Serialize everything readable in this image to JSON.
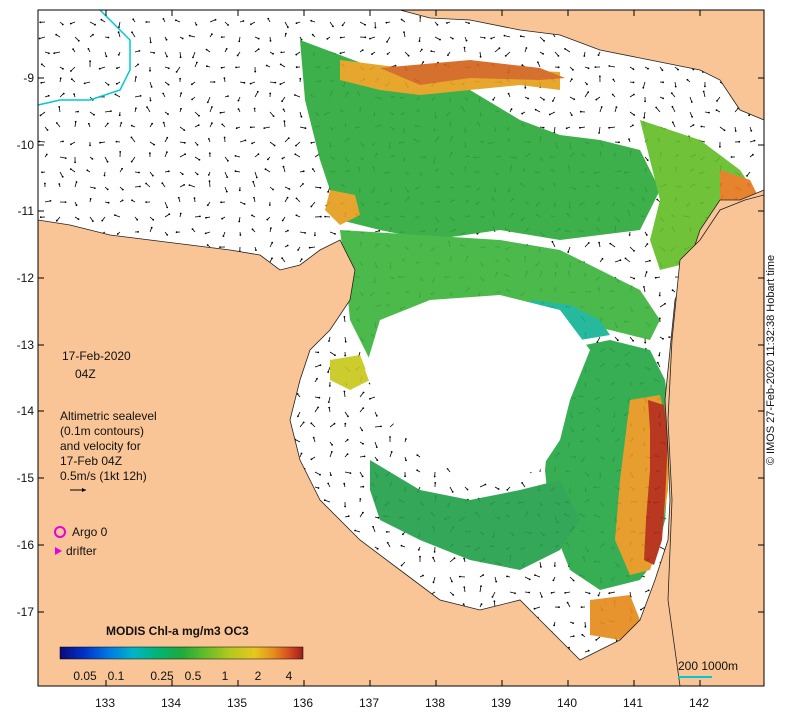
{
  "title_date": "17-Feb-2020",
  "title_time": "04Z",
  "legend": {
    "line1": "Altimetric sealevel",
    "line2": "(0.1m contours)",
    "line3": "and velocity for",
    "line4": "17-Feb 04Z",
    "line5": "0.5m/s (1kt 12h)",
    "argo": "Argo 0",
    "drifter": "drifter"
  },
  "colorbar": {
    "title": "MODIS Chl-a mg/m3 OC3",
    "ticks": [
      "0.05",
      "0.1",
      "0.25",
      "0.5",
      "1",
      "2",
      "4"
    ],
    "colors": [
      "#0a0a78",
      "#0032c8",
      "#0078e6",
      "#00b4c8",
      "#00b478",
      "#1eaa3c",
      "#64be28",
      "#b4c81e",
      "#e6c81e",
      "#e68c1e",
      "#d2461e",
      "#9b1e1e"
    ]
  },
  "scale": {
    "label": "200  1000m"
  },
  "credit": "© IMOS 27-Feb-2020 11:32:38 Hobart time",
  "axes": {
    "x_ticks": [
      "133",
      "134",
      "135",
      "136",
      "137",
      "138",
      "139",
      "140",
      "141",
      "142"
    ],
    "y_ticks": [
      "-9",
      "-10",
      "-11",
      "-12",
      "-13",
      "-14",
      "-15",
      "-16",
      "-17"
    ]
  },
  "colors": {
    "land": "#f9c596",
    "ocean": "#ffffff",
    "isobath": "#00c8d2",
    "argo": "#e600e6"
  }
}
